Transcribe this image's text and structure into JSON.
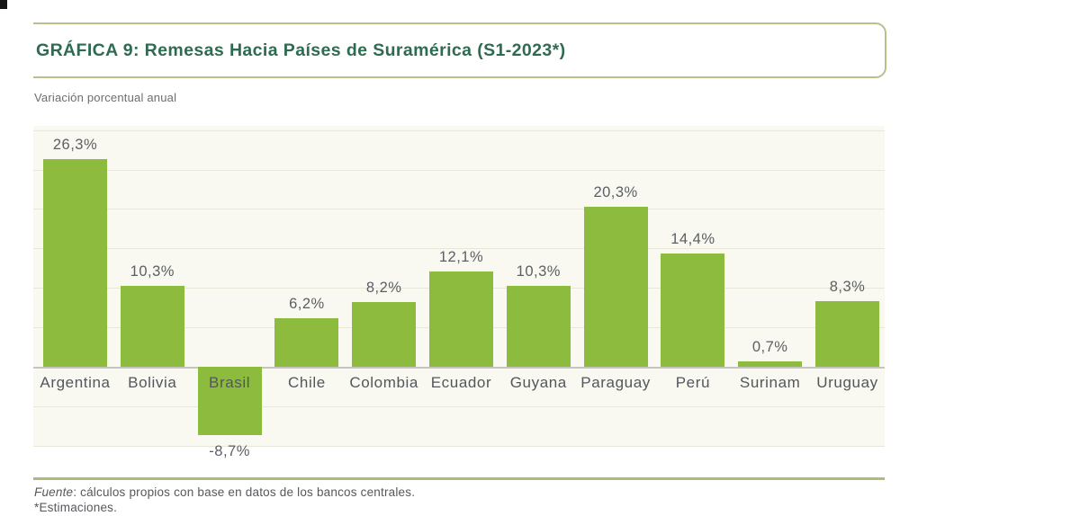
{
  "header": {
    "title": "GRÁFICA 9: Remesas Hacia Países de Suramérica (S1-2023*)",
    "subtitle": "Variación porcentual anual"
  },
  "footer": {
    "source_prefix": "Fuente",
    "source_rest": ": cálculos propios con base en datos de los bancos centrales.",
    "note": "*Estimaciones."
  },
  "colors": {
    "bar": "#8cbb3e",
    "title_green": "#2e6b51",
    "box_border_olive": "#b4c28c",
    "separator_olive": "#a9bd7c",
    "plot_background": "#f9f9f2",
    "gridline": "#e7e8da",
    "axis_line": "#c5c5bf",
    "label_gray": "#55585c"
  },
  "chart_data": {
    "type": "bar",
    "title": "GRÁFICA 9: Remesas Hacia Países de Suramérica (S1-2023*)",
    "subtitle": "Variación porcentual anual",
    "xlabel": "",
    "ylabel": "Variación porcentual anual",
    "categories": [
      "Argentina",
      "Bolivia",
      "Brasil",
      "Chile",
      "Colombia",
      "Ecuador",
      "Guyana",
      "Paraguay",
      "Perú",
      "Surinam",
      "Uruguay"
    ],
    "values": [
      26.3,
      10.3,
      -8.7,
      6.2,
      8.2,
      12.1,
      10.3,
      20.3,
      14.4,
      0.7,
      8.3
    ],
    "labels": [
      "26,3%",
      "10,3%",
      "-8,7%",
      "6,2%",
      "8,2%",
      "12,1%",
      "10,3%",
      "20,3%",
      "14,4%",
      "0,7%",
      "8,3%"
    ],
    "ylim": [
      -10,
      30
    ],
    "ytick_step": 5,
    "grid": true,
    "legend": false,
    "bar_color": "#8cbb3e"
  }
}
